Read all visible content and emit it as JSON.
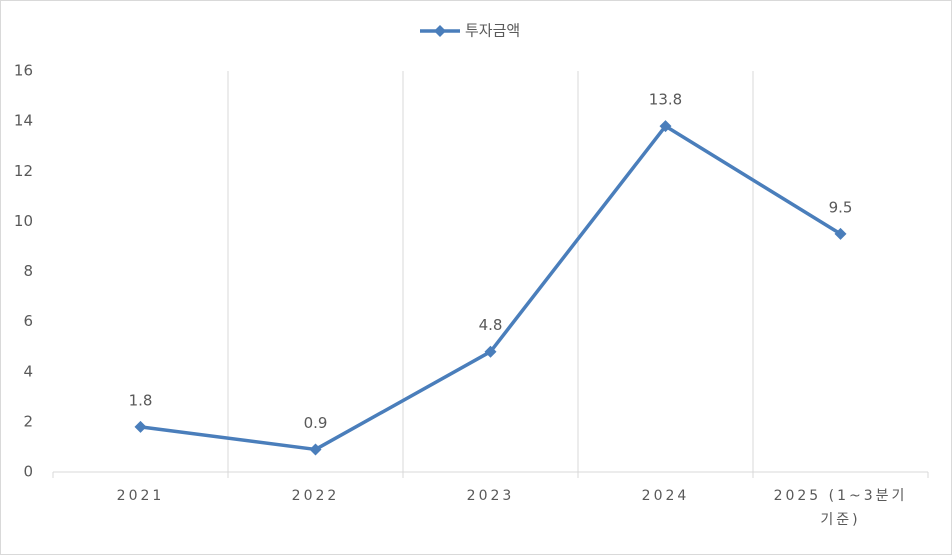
{
  "chart_data": {
    "type": "line",
    "categories": [
      "2021",
      "2022",
      "2023",
      "2024",
      "2025 (1~3분기 기준)"
    ],
    "series": [
      {
        "name": "투자금액",
        "color": "#4a7ebb",
        "values": [
          1.8,
          0.9,
          4.8,
          13.8,
          9.5
        ]
      }
    ],
    "ylim": [
      0,
      16
    ],
    "yticks": [
      0,
      2,
      4,
      6,
      8,
      10,
      12,
      14,
      16
    ],
    "legend": "top",
    "data_labels": true
  }
}
